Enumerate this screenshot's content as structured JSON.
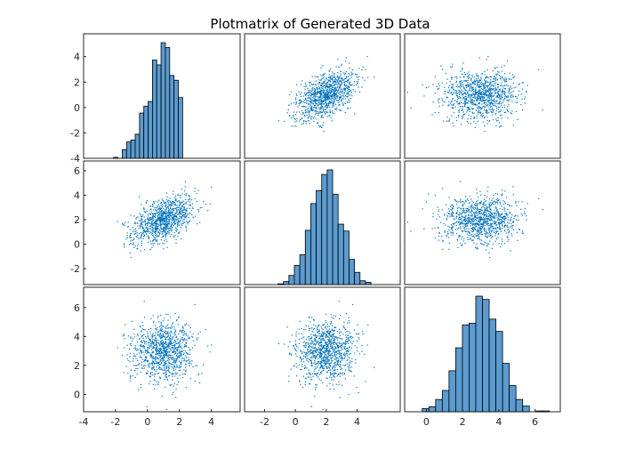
{
  "chart_data": {
    "type": "scatter",
    "subtype": "plotmatrix",
    "title": "Plotmatrix of Generated 3D Data",
    "grid": false,
    "variables": [
      {
        "name": "",
        "mean": 1.0,
        "std": 1.0,
        "ticks": [
          -4,
          -2,
          0,
          2,
          4
        ],
        "range": [
          -4,
          5.8
        ]
      },
      {
        "name": "",
        "mean": 2.0,
        "std": 1.0,
        "ticks": [
          -2,
          0,
          2,
          4,
          6
        ],
        "range": [
          -3.3,
          6.8
        ]
      },
      {
        "name": "",
        "mean": 3.0,
        "std": 1.0,
        "ticks": [
          0,
          2,
          4,
          6
        ],
        "range": [
          -1.2,
          7.4
        ]
      }
    ],
    "row_tick_labels": [
      [
        "-4",
        "-2",
        "0",
        "2",
        "4"
      ],
      [
        "-2",
        "0",
        "2",
        "4",
        "6"
      ],
      [
        "0",
        "2",
        "4",
        "6"
      ]
    ],
    "col_tick_labels": [
      [
        "-4",
        "-2",
        "0",
        "2",
        "4"
      ],
      [
        "-2",
        "0",
        "2",
        "4"
      ],
      [
        "0",
        "2",
        "4",
        "6"
      ]
    ],
    "correlations": {
      "x1_x2": 0.5,
      "x1_x3": 0.0,
      "x2_x3": 0.0
    },
    "histograms": [
      {
        "variable": 1,
        "bin_edges": [
          -3.2,
          2.2
        ],
        "counts": []
      },
      {
        "variable": 2,
        "bin_edges": [
          -2.2,
          4.9
        ],
        "counts": []
      },
      {
        "variable": 3,
        "bin_edges": [
          -0.6,
          6.8
        ],
        "counts": []
      }
    ],
    "n_points": 1000,
    "colors": {
      "points": "#0072bd",
      "bars": "#5b9bd0",
      "bar_edge": "#000000",
      "axes": "#262626"
    }
  }
}
